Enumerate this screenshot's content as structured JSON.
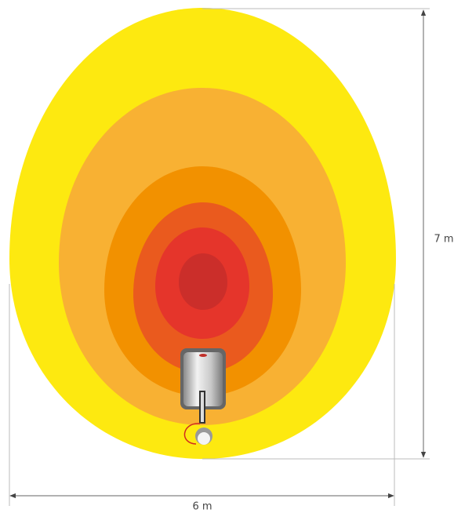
{
  "dimensions": {
    "height": "7 m",
    "width": "6 m"
  }
}
